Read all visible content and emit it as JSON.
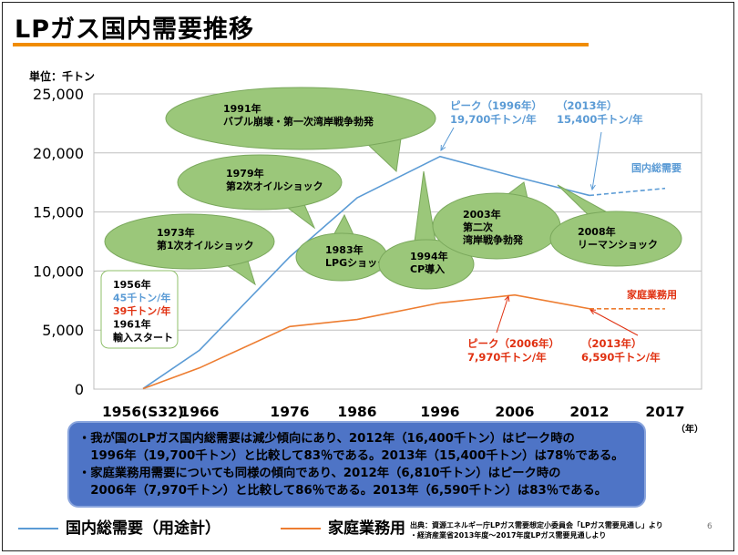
{
  "title": "LPガス国内需要推移",
  "unit_label": "単位：千トン",
  "colors": {
    "total": "#5b9bd5",
    "household": "#ed7d31",
    "bubble_fill": "#9bc77a",
    "bubble_stroke": "#7aa85c",
    "accent": "#f08c00",
    "summary_bg": "#4e74c6"
  },
  "chart_data": {
    "type": "line",
    "x_tick_labels": [
      "1956(S32)",
      "1966",
      "1976",
      "1986",
      "1996",
      "2006",
      "2012",
      "2017"
    ],
    "x_unit": "（年）",
    "y_ticks": [
      "0",
      "5,000",
      "10,000",
      "15,000",
      "20,000",
      "25,000"
    ],
    "ylim": [
      0,
      25000
    ],
    "grid": true,
    "series": [
      {
        "name": "国内総需要（用途計）",
        "color": "#5b9bd5",
        "points": [
          [
            1956,
            45
          ],
          [
            1966,
            3300
          ],
          [
            1976,
            11200
          ],
          [
            1986,
            16200
          ],
          [
            1996,
            19700
          ],
          [
            2006,
            18000
          ],
          [
            2012,
            16400
          ]
        ],
        "forecast": [
          [
            2012,
            16400
          ],
          [
            2017,
            17000
          ]
        ],
        "label": "国内総需要"
      },
      {
        "name": "家庭業務用",
        "color": "#ed7d31",
        "points": [
          [
            1956,
            39
          ],
          [
            1966,
            1800
          ],
          [
            1976,
            5300
          ],
          [
            1986,
            5900
          ],
          [
            1996,
            7300
          ],
          [
            2006,
            7970
          ],
          [
            2012,
            6810
          ]
        ],
        "forecast": [
          [
            2012,
            6810
          ],
          [
            2017,
            6800
          ]
        ],
        "label": "家庭業務用"
      }
    ]
  },
  "bubbles": [
    {
      "lines": [
        "1991年",
        "バブル崩壊・第一次湾岸戦争勃発"
      ]
    },
    {
      "lines": [
        "1979年",
        "第2次オイルショック"
      ]
    },
    {
      "lines": [
        "1973年",
        "第1次オイルショック"
      ]
    },
    {
      "lines": [
        "1983年",
        "LPGショック"
      ]
    },
    {
      "lines": [
        "1994年",
        "CP導入"
      ]
    },
    {
      "lines": [
        "2003年",
        "第二次",
        "湾岸戦争勃発"
      ]
    },
    {
      "lines": [
        "2008年",
        "リーマンショック"
      ]
    }
  ],
  "annotations": {
    "peak_total": [
      "ピーク（1996年）",
      "19,700千トン/年"
    ],
    "total_2013": [
      "（2013年）",
      "15,400千トン/年"
    ],
    "peak_household": [
      "ピーク（2006年）",
      "7,970千トン/年"
    ],
    "household_2013": [
      "（2013年）",
      "6,590千トン/年"
    ],
    "start_box": [
      "1956年",
      "45千トン/年",
      "39千トン/年",
      "1961年",
      "輸入スタート"
    ]
  },
  "summary_lines": [
    "・我が国のLPガス国内総需要は減少傾向にあり、2012年（16,400千トン）はピーク時の",
    "　1996年（19,700千トン）と比較して83％である。2013年（15,400千トン）は78％である。",
    "・家庭業務用需要についても同様の傾向であり、2012年（6,810千トン）はピーク時の",
    "　2006年（7,970千トン）と比較して86％である。2013年（6,590千トン）は83％である。"
  ],
  "legend": [
    "国内総需要（用途計）",
    "家庭業務用"
  ],
  "source_lines": [
    "出典：資源エネルギー庁LPガス需要想定小委員会「LPガス需要見通し」より",
    "・経済産業省2013年度～2017年度LPガス需要見通しより"
  ],
  "page_number": "6"
}
